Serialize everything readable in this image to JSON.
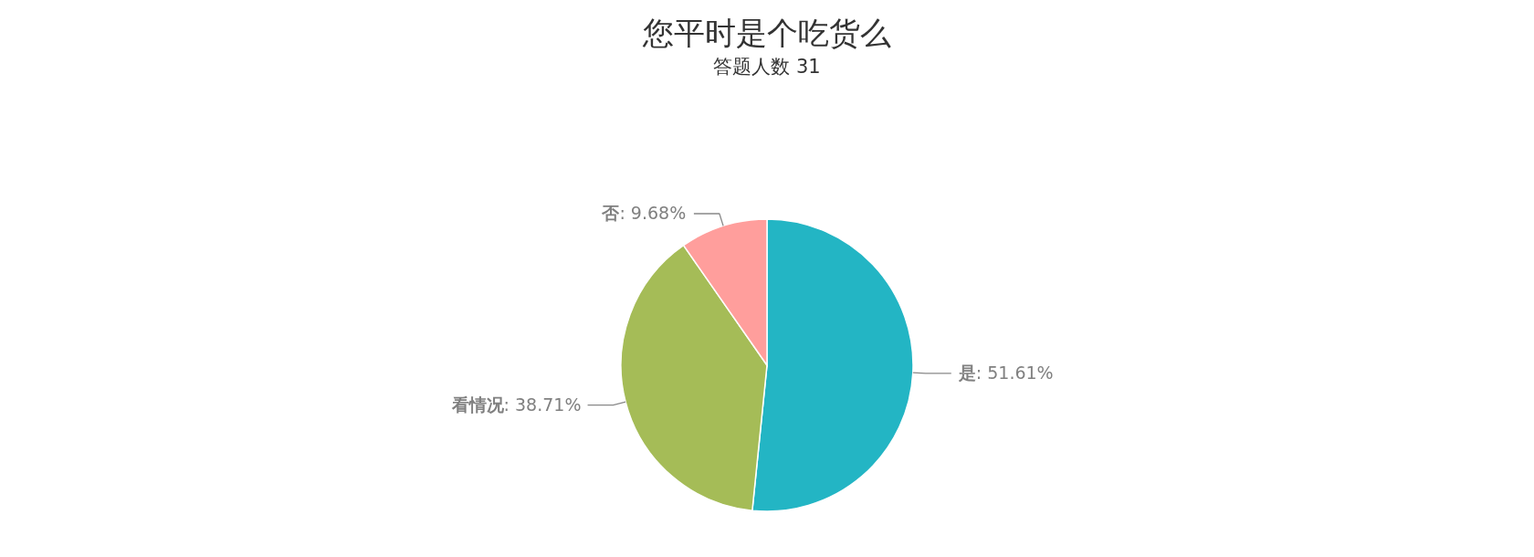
{
  "chart_data": {
    "type": "pie",
    "title": "您平时是个吃货么",
    "subtitle": "答题人数 31",
    "categories": [
      "是",
      "看情况",
      "否"
    ],
    "values": [
      51.61,
      38.71,
      9.68
    ],
    "value_labels": [
      ": 51.61%",
      ": 38.71%",
      ": 9.68%"
    ],
    "colors": [
      "#23b5c4",
      "#a5bc57",
      "#ff9e9c"
    ]
  }
}
